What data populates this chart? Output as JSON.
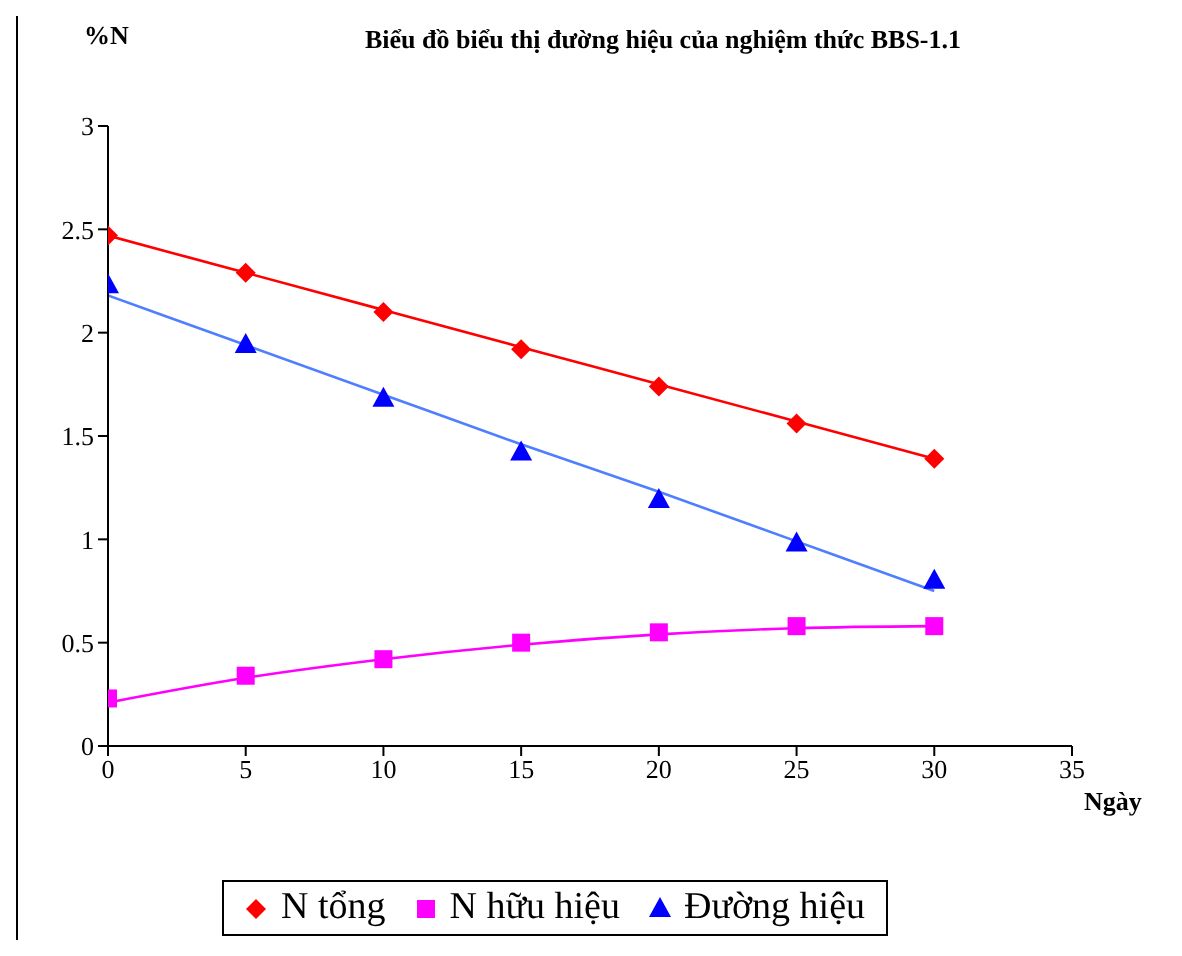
{
  "chart_data": {
    "type": "scatter",
    "title": "Biểu đồ biểu thị đường hiệu của nghiệm thức BBS-1.1",
    "xlabel": "Ngày",
    "ylabel": "%N",
    "x": [
      0,
      5,
      10,
      15,
      20,
      25,
      30
    ],
    "series": [
      {
        "name": "N tổng",
        "color": "#ff0000",
        "marker": "diamond",
        "values": [
          2.47,
          2.29,
          2.1,
          1.92,
          1.74,
          1.56,
          1.39
        ]
      },
      {
        "name": "N hữu hiệu",
        "color": "#ff00ff",
        "marker": "square",
        "values": [
          0.23,
          0.34,
          0.42,
          0.5,
          0.55,
          0.58,
          0.58
        ]
      },
      {
        "name": "Đường hiệu",
        "color": "#0000ff",
        "marker": "triangle",
        "values": [
          2.23,
          1.94,
          1.68,
          1.42,
          1.19,
          0.98,
          0.8
        ]
      },
      {
        "type": "line",
        "color": "#ff0000",
        "marker": "none",
        "line_style": "solid",
        "values": [
          2.47,
          2.29,
          2.11,
          1.93,
          1.75,
          1.57,
          1.39
        ]
      },
      {
        "type": "line",
        "color": "#ff00ff",
        "marker": "none",
        "line_style": "solid",
        "values": [
          0.21,
          0.33,
          0.42,
          0.49,
          0.54,
          0.57,
          0.58
        ]
      },
      {
        "type": "line",
        "color": "#4f7fff",
        "marker": "none",
        "line_style": "solid",
        "values": [
          2.18,
          1.94,
          1.7,
          1.46,
          1.23,
          0.99,
          0.75
        ]
      }
    ],
    "xlim": [
      0,
      35
    ],
    "xticks": [
      0,
      5,
      10,
      15,
      20,
      25,
      30,
      35
    ],
    "ylim": [
      0,
      3
    ],
    "yticks": [
      0,
      0.5,
      1,
      1.5,
      2,
      2.5,
      3
    ],
    "grid": false,
    "legend": "bottom"
  }
}
